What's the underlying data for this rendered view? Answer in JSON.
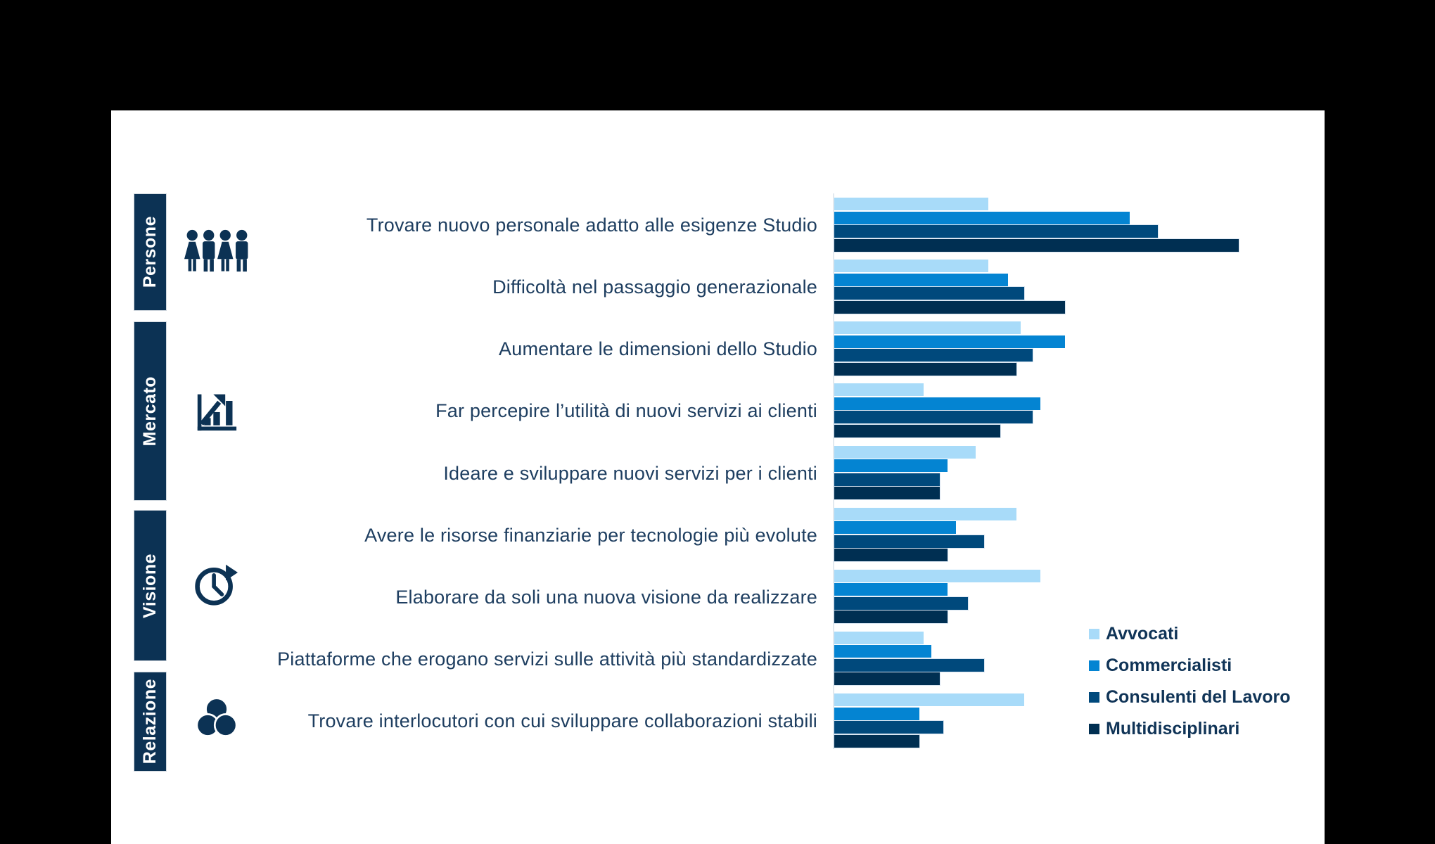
{
  "page": {
    "background": "#000000",
    "card_background": "#FFFFFF"
  },
  "colors": {
    "sidebar_navy": "#0C3254",
    "row_label_text": "#1E3E60",
    "legend_text": "#103457",
    "axis_line": "#E2E9EF"
  },
  "sidebar": {
    "sections": [
      {
        "label": "Persone",
        "icon": "people-icon"
      },
      {
        "label": "Mercato",
        "icon": "growth-chart-icon"
      },
      {
        "label": "Visione",
        "icon": "clock-arrow-icon"
      },
      {
        "label": "Relazione",
        "icon": "venn-diagram-icon"
      }
    ]
  },
  "chart_data": {
    "type": "bar",
    "orientation": "horizontal",
    "value_axis": "hidden - no numeric axis shown; values are relative bar lengths normalized so the longest bar = 100",
    "legend_position": "right-bottom",
    "series": [
      {
        "name": "Avvocati",
        "color": "#A8DBF9"
      },
      {
        "name": "Commercialisti",
        "color": "#0484D2"
      },
      {
        "name": "Consulenti del Lavoro",
        "color": "#00497C"
      },
      {
        "name": "Multidisciplinari",
        "color": "#002F52"
      }
    ],
    "rows": [
      {
        "section": "Persone",
        "label": "Trovare nuovo personale adatto alle esigenze Studio",
        "values": [
          38,
          73,
          80,
          100
        ]
      },
      {
        "section": "Persone",
        "label": "Difficoltà nel passaggio generazionale",
        "values": [
          38,
          43,
          47,
          57
        ]
      },
      {
        "section": "Mercato",
        "label": "Aumentare le dimensioni dello Studio",
        "values": [
          46,
          57,
          49,
          45
        ]
      },
      {
        "section": "Mercato",
        "label": "Far percepire l’utilità di nuovi servizi ai clienti",
        "values": [
          22,
          51,
          49,
          41
        ]
      },
      {
        "section": "Mercato",
        "label": "Ideare e sviluppare nuovi servizi per i clienti",
        "values": [
          35,
          28,
          26,
          26
        ]
      },
      {
        "section": "Visione",
        "label": "Avere le risorse finanziarie per tecnologie più evolute",
        "values": [
          45,
          30,
          37,
          28
        ]
      },
      {
        "section": "Visione",
        "label": "Elaborare da soli una nuova visione da realizzare",
        "values": [
          51,
          28,
          33,
          28
        ]
      },
      {
        "section": "Visione",
        "label": "Piattaforme che erogano servizi sulle attività più standardizzate",
        "values": [
          22,
          24,
          37,
          26
        ]
      },
      {
        "section": "Relazione",
        "label": "Trovare interlocutori con cui sviluppare collaborazioni stabili",
        "values": [
          47,
          21,
          27,
          21
        ]
      }
    ]
  }
}
